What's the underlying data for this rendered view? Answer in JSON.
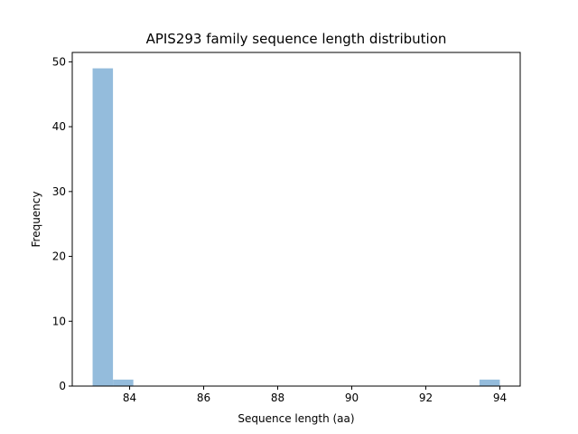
{
  "chart_data": {
    "type": "bar",
    "title": "APIS293 family sequence length distribution",
    "xlabel": "Sequence length (aa)",
    "ylabel": "Frequency",
    "xlim": [
      82.45,
      94.55
    ],
    "ylim": [
      0,
      51.45
    ],
    "x_ticks": [
      84,
      86,
      88,
      90,
      92,
      94
    ],
    "y_ticks": [
      0,
      10,
      20,
      30,
      40,
      50
    ],
    "bins": [
      {
        "start": 83.0,
        "end": 83.55,
        "value": 49
      },
      {
        "start": 83.55,
        "end": 84.1,
        "value": 1
      },
      {
        "start": 93.45,
        "end": 94.0,
        "value": 1
      }
    ],
    "bar_color": "#94bcdc",
    "grid": false
  }
}
